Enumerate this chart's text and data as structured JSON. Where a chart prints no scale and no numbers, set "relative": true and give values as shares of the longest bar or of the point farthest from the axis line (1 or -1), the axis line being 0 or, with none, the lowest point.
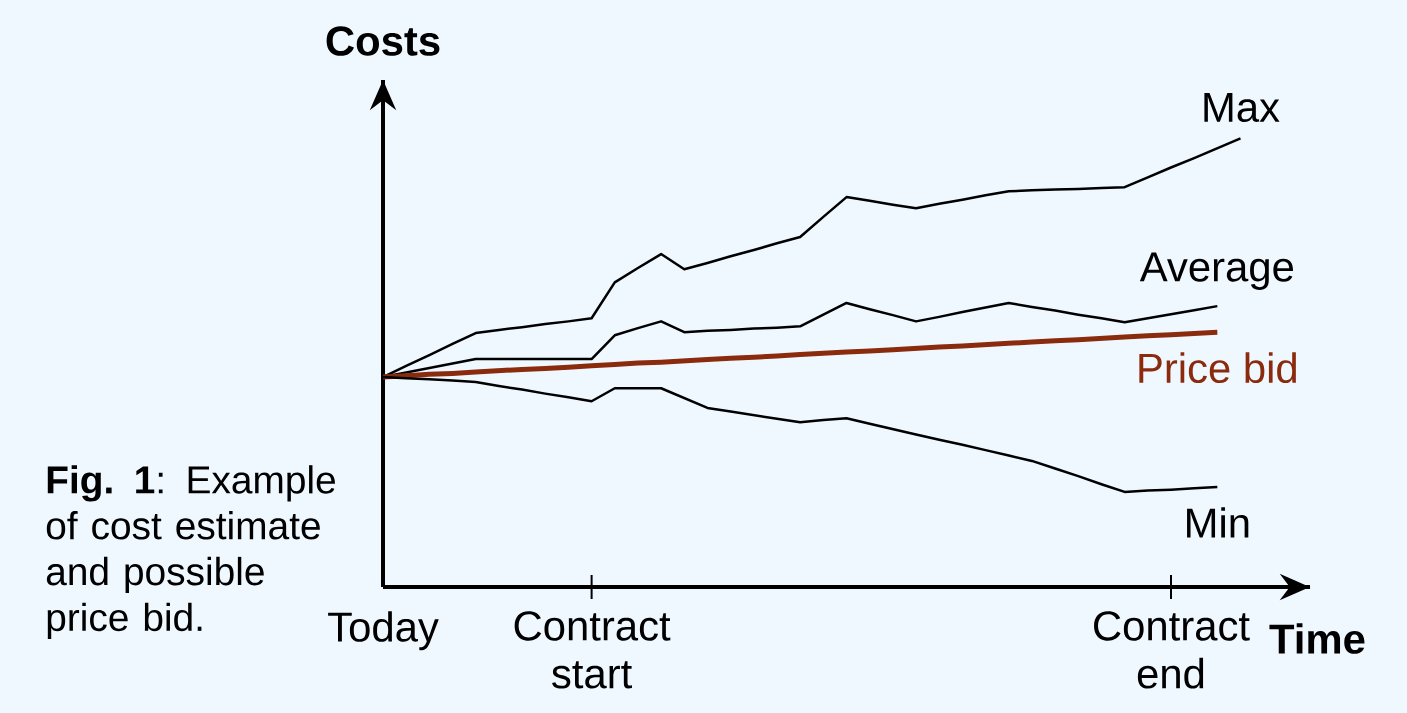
{
  "chart_data": {
    "type": "line",
    "relative": true,
    "ylabel": "Costs",
    "xlabel": "Time",
    "categories": [
      "Today",
      null,
      null,
      null,
      null,
      null,
      null,
      null,
      null,
      "Contract start",
      null,
      null,
      null,
      null,
      null,
      null,
      null,
      null,
      null,
      null,
      null,
      null,
      null,
      null,
      null,
      null,
      null,
      null,
      null,
      null,
      null,
      null,
      null,
      null,
      "Contract end",
      null,
      null,
      null,
      null,
      null,
      null
    ],
    "series": [
      {
        "name": "Max",
        "color": "#000000",
        "values": [
          0.468,
          0.493,
          0.517,
          0.542,
          0.566,
          0.573,
          0.579,
          0.586,
          0.592,
          0.599,
          0.679,
          0.711,
          0.742,
          0.708,
          0.722,
          0.737,
          0.751,
          0.766,
          0.78,
          0.825,
          0.869,
          0.861,
          0.852,
          0.844,
          0.854,
          0.863,
          0.873,
          0.882,
          0.884,
          0.886,
          0.887,
          0.889,
          0.891,
          0.913,
          0.935,
          0.956,
          0.978,
          1,
          null,
          null,
          null
        ]
      },
      {
        "name": "Average",
        "color": "#000000",
        "values": [
          0.468,
          0.478,
          0.488,
          0.498,
          0.508,
          0.508,
          0.508,
          0.508,
          0.508,
          0.508,
          0.561,
          0.577,
          0.592,
          0.568,
          0.571,
          0.573,
          0.576,
          0.578,
          0.581,
          0.607,
          0.633,
          0.619,
          0.606,
          0.592,
          0.602,
          0.613,
          0.623,
          0.633,
          0.624,
          0.616,
          0.607,
          0.599,
          0.59,
          0.599,
          0.608,
          0.617,
          0.626,
          null,
          null,
          null,
          null
        ]
      },
      {
        "name": "Price bid",
        "color": "#8b2b0e",
        "values": [
          0.468,
          0.471,
          0.474,
          0.476,
          0.479,
          0.482,
          0.485,
          0.487,
          0.49,
          0.493,
          0.496,
          0.499,
          0.501,
          0.504,
          0.507,
          0.51,
          0.512,
          0.515,
          0.518,
          0.521,
          0.524,
          0.526,
          0.529,
          0.532,
          0.535,
          0.537,
          0.54,
          0.543,
          0.546,
          0.549,
          0.551,
          0.554,
          0.557,
          0.56,
          0.562,
          0.565,
          0.568,
          null,
          null,
          null,
          null
        ]
      },
      {
        "name": "Min",
        "color": "#000000",
        "values": [
          0.468,
          0.465,
          0.463,
          0.46,
          0.457,
          0.448,
          0.44,
          0.431,
          0.423,
          0.414,
          0.443,
          0.443,
          0.443,
          0.421,
          0.399,
          0.391,
          0.383,
          0.375,
          0.367,
          0.372,
          0.376,
          0.364,
          0.352,
          0.34,
          0.328,
          0.317,
          0.305,
          0.293,
          0.281,
          0.264,
          0.247,
          0.229,
          0.212,
          0.215,
          0.217,
          0.22,
          0.223,
          null,
          null,
          null,
          null
        ]
      }
    ],
    "marker": "none",
    "line_style": "solid",
    "grid": false,
    "legend": false,
    "annotations": [
      "**Fig. 1**: Example of cost estimate and possible price bid."
    ]
  }
}
